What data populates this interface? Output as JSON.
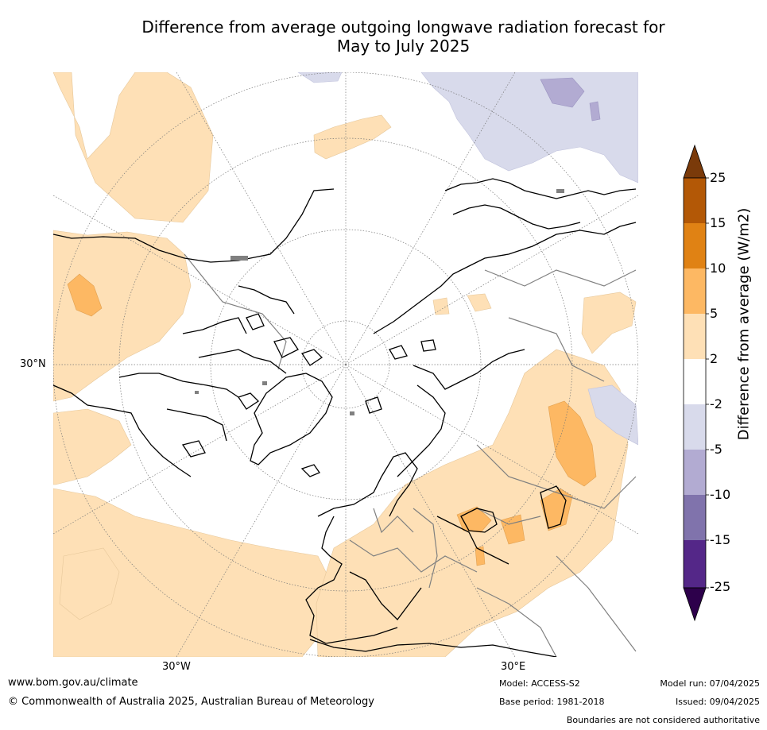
{
  "title_line1": "Difference from average outgoing longwave radiation forecast for",
  "title_line2": "May to July 2025",
  "map_labels": {
    "lat_30n": "30°N",
    "lon_30w": "30°W",
    "lon_30e": "30°E"
  },
  "colorbar": {
    "title": "Difference from average (W/m2)",
    "ticks": [
      "25",
      "15",
      "10",
      "5",
      "2",
      "-2",
      "-5",
      "-10",
      "-15",
      "-25"
    ],
    "colors": {
      "above_25": "#7a3a0a",
      "15_25": "#b35806",
      "10_15": "#e08214",
      "5_10": "#fdb863",
      "2_5": "#fee0b6",
      "neutral": "#ffffff",
      "m5_m2": "#d8daeb",
      "m10_m5": "#b2abd2",
      "m15_m10": "#8073ac",
      "m25_m15": "#542788",
      "below_m25": "#2d004b"
    }
  },
  "footer": {
    "website": "www.bom.gov.au/climate",
    "copyright": "© Commonwealth of Australia 2025, Australian Bureau of Meteorology",
    "model": "Model: ACCESS-S2",
    "base_period": "Base period: 1981-2018",
    "model_run": "Model run: 07/04/2025",
    "issued": "Issued: 09/04/2025",
    "disclaimer": "Boundaries are not considered authoritative"
  }
}
